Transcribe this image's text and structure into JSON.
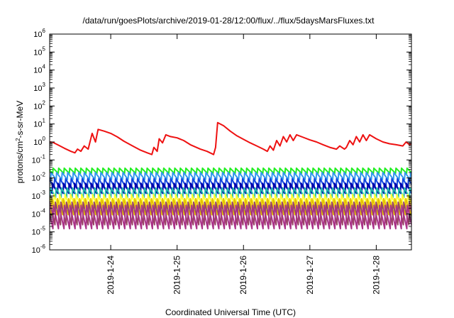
{
  "chart_data": {
    "type": "line",
    "title": "/data/run/goesPlots/archive/2019-01-28/12:00/flux/../flux/5daysMarsFluxes.txt",
    "xlabel": "Coordinated Universal Time (UTC)",
    "ylabel": "protons/cm2-s-sr-MeV",
    "y_scale": "log",
    "ylim": [
      1e-06,
      1000000.0
    ],
    "y_ticks": [
      {
        "value": 1e-06,
        "base": "10",
        "exp": "-6"
      },
      {
        "value": 1e-05,
        "base": "10",
        "exp": "-5"
      },
      {
        "value": 0.0001,
        "base": "10",
        "exp": "-4"
      },
      {
        "value": 0.001,
        "base": "10",
        "exp": "-3"
      },
      {
        "value": 0.01,
        "base": "10",
        "exp": "-2"
      },
      {
        "value": 0.1,
        "base": "10",
        "exp": "-1"
      },
      {
        "value": 1.0,
        "base": "10",
        "exp": "0"
      },
      {
        "value": 10.0,
        "base": "10",
        "exp": "1"
      },
      {
        "value": 100.0,
        "base": "10",
        "exp": "2"
      },
      {
        "value": 1000.0,
        "base": "10",
        "exp": "3"
      },
      {
        "value": 10000.0,
        "base": "10",
        "exp": "4"
      },
      {
        "value": 100000.0,
        "base": "10",
        "exp": "5"
      },
      {
        "value": 1000000.0,
        "base": "10",
        "exp": "6"
      }
    ],
    "xlim": [
      23.08,
      28.53
    ],
    "x_ticks": [
      {
        "value": 24,
        "label": "2019-1-24"
      },
      {
        "value": 25,
        "label": "2019-1-25"
      },
      {
        "value": 26,
        "label": "2019-1-26"
      },
      {
        "value": 27,
        "label": "2019-1-27"
      },
      {
        "value": 28,
        "label": "2019-1-28"
      }
    ],
    "grid": false,
    "legend": "none",
    "series": [
      {
        "color": "#ee1111",
        "points": [
          [
            23.08,
            1.0
          ],
          [
            23.13,
            0.95
          ],
          [
            23.2,
            0.7
          ],
          [
            23.3,
            0.45
          ],
          [
            23.4,
            0.3
          ],
          [
            23.46,
            0.25
          ],
          [
            23.5,
            0.4
          ],
          [
            23.55,
            0.3
          ],
          [
            23.6,
            0.6
          ],
          [
            23.66,
            0.4
          ],
          [
            23.72,
            3.0
          ],
          [
            23.77,
            1.0
          ],
          [
            23.81,
            5.0
          ],
          [
            23.9,
            4.0
          ],
          [
            24.0,
            3.0
          ],
          [
            24.1,
            1.9
          ],
          [
            24.2,
            1.1
          ],
          [
            24.35,
            0.55
          ],
          [
            24.45,
            0.35
          ],
          [
            24.55,
            0.25
          ],
          [
            24.62,
            0.2
          ],
          [
            24.65,
            0.5
          ],
          [
            24.7,
            0.3
          ],
          [
            24.73,
            1.5
          ],
          [
            24.78,
            0.9
          ],
          [
            24.83,
            2.5
          ],
          [
            24.9,
            2.0
          ],
          [
            25.0,
            1.7
          ],
          [
            25.1,
            1.2
          ],
          [
            25.2,
            0.7
          ],
          [
            25.35,
            0.4
          ],
          [
            25.45,
            0.3
          ],
          [
            25.55,
            0.2
          ],
          [
            25.58,
            0.5
          ],
          [
            25.61,
            12.0
          ],
          [
            25.7,
            8.0
          ],
          [
            25.8,
            4.0
          ],
          [
            25.9,
            2.2
          ],
          [
            26.0,
            1.4
          ],
          [
            26.1,
            0.9
          ],
          [
            26.2,
            0.6
          ],
          [
            26.3,
            0.4
          ],
          [
            26.36,
            0.3
          ],
          [
            26.4,
            0.6
          ],
          [
            26.45,
            0.35
          ],
          [
            26.5,
            1.2
          ],
          [
            26.55,
            0.6
          ],
          [
            26.6,
            2.0
          ],
          [
            26.65,
            1.0
          ],
          [
            26.7,
            2.5
          ],
          [
            26.75,
            1.2
          ],
          [
            26.8,
            2.5
          ],
          [
            26.9,
            1.8
          ],
          [
            27.0,
            1.3
          ],
          [
            27.1,
            1.0
          ],
          [
            27.2,
            0.7
          ],
          [
            27.3,
            0.5
          ],
          [
            27.4,
            0.4
          ],
          [
            27.45,
            0.6
          ],
          [
            27.52,
            0.4
          ],
          [
            27.55,
            0.5
          ],
          [
            27.6,
            1.2
          ],
          [
            27.65,
            0.7
          ],
          [
            27.7,
            2.0
          ],
          [
            27.75,
            1.0
          ],
          [
            27.8,
            2.5
          ],
          [
            27.85,
            1.2
          ],
          [
            27.9,
            2.5
          ],
          [
            28.0,
            1.5
          ],
          [
            28.1,
            1.0
          ],
          [
            28.2,
            0.8
          ],
          [
            28.3,
            0.7
          ],
          [
            28.4,
            0.6
          ],
          [
            28.45,
            1.0
          ],
          [
            28.5,
            0.7
          ],
          [
            28.53,
            0.8
          ]
        ]
      },
      {
        "color": "#22ee22",
        "osc": {
          "top": 0.035,
          "bottom": 0.018
        }
      },
      {
        "color": "#3399ee",
        "osc": {
          "top": 0.02,
          "bottom": 0.008
        }
      },
      {
        "color": "#1144dd",
        "osc": {
          "top": 0.009,
          "bottom": 0.0028
        }
      },
      {
        "color": "#0000aa",
        "osc": {
          "top": 0.005,
          "bottom": 0.0014
        }
      },
      {
        "color": "#22bbaa",
        "osc": {
          "top": 0.0028,
          "bottom": 0.0008
        }
      },
      {
        "color": "#ffff33",
        "osc": {
          "top": 0.0012,
          "bottom": 0.0002
        }
      },
      {
        "color": "#e6c200",
        "osc": {
          "top": 0.0007,
          "bottom": 9e-05
        }
      },
      {
        "color": "#994466",
        "osc": {
          "top": 0.00045,
          "bottom": 2.5e-05
        }
      },
      {
        "color": "#aa3388",
        "osc": {
          "top": 0.0003,
          "bottom": 1.5e-05
        }
      }
    ]
  }
}
